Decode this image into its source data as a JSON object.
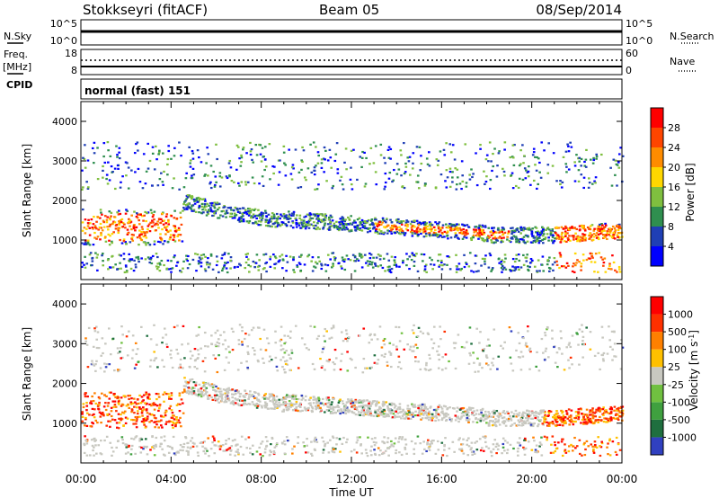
{
  "header": {
    "station": "Stokkseyri (fitACF)",
    "beam": "Beam 05",
    "date": "08/Sep/2014"
  },
  "top_panel": {
    "left_label_1": "N.Sky",
    "left_ticks_1": [
      "10^5",
      "10^0"
    ],
    "right_ticks_1": [
      "10^5",
      "10^0"
    ],
    "right_label_1": "N.Search",
    "left_label_2a": "Freq.",
    "left_label_2b": "[MHz]",
    "left_ticks_2": [
      "18",
      "8"
    ],
    "right_ticks_2": [
      "60",
      "0"
    ],
    "right_label_2": "Nave",
    "cpid_label": "CPID",
    "cpid_value": "normal (fast) 151"
  },
  "colors": {
    "power_scale": [
      "#0000ff",
      "#1f3fb5",
      "#2f8f4f",
      "#7fbf3f",
      "#ffd700",
      "#ff8c00",
      "#ff4500",
      "#ff0000"
    ],
    "velocity_scale": [
      "#3040c0",
      "#1f6f3f",
      "#3fa03f",
      "#70c040",
      "#c8c8c0",
      "#ffc000",
      "#ff8000",
      "#ff3000",
      "#ff0000"
    ]
  },
  "chart_data": [
    {
      "type": "heatmap",
      "name": "power",
      "ylabel": "Slant Range [km]",
      "ylim": [
        0,
        4500
      ],
      "yticks": [
        "1000",
        "2000",
        "3000",
        "4000"
      ],
      "xlim_hours": [
        0,
        24
      ],
      "xticks": [
        "00:00",
        "04:00",
        "08:00",
        "12:00",
        "16:00",
        "20:00",
        "00:00"
      ],
      "colorbar_label": "Power [dB]",
      "colorbar_ticks": [
        "4",
        "8",
        "12",
        "16",
        "20",
        "24",
        "28"
      ],
      "colorbar_range": [
        0,
        32
      ]
    },
    {
      "type": "heatmap",
      "name": "velocity",
      "ylabel": "Slant Range [km]",
      "ylim": [
        0,
        4500
      ],
      "yticks": [
        "1000",
        "2000",
        "3000",
        "4000"
      ],
      "xlim_hours": [
        0,
        24
      ],
      "xticks": [
        "00:00",
        "04:00",
        "08:00",
        "12:00",
        "16:00",
        "20:00",
        "00:00"
      ],
      "xlabel": "Time UT",
      "colorbar_label": "Velocity [m s",
      "colorbar_label_sup": "-1",
      "colorbar_label_end": "]",
      "colorbar_ticks": [
        "-1000",
        "-500",
        "-100",
        "-25",
        "25",
        "100",
        "500",
        "1000"
      ]
    }
  ]
}
